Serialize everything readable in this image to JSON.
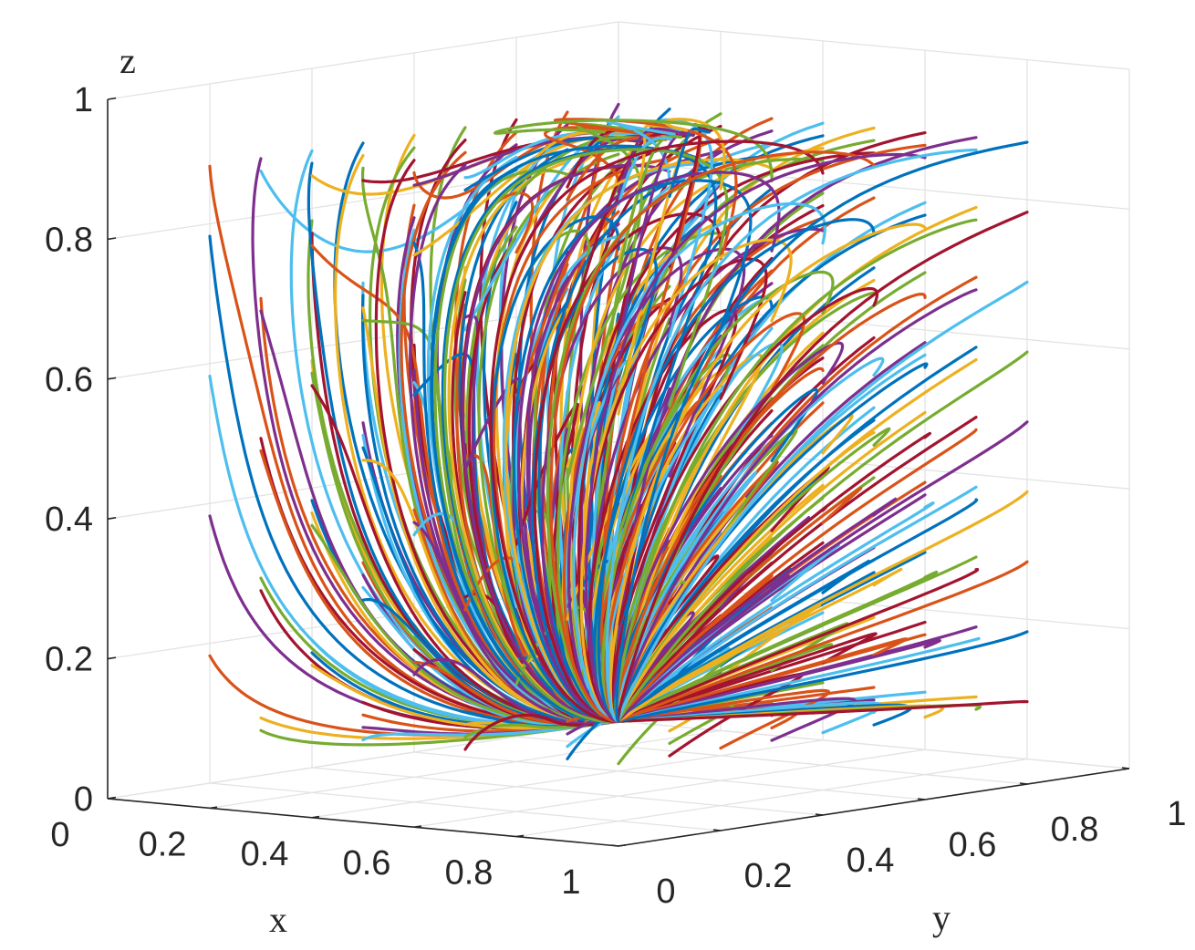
{
  "chart_data": {
    "type": "line",
    "subtype": "3d-phase-trajectories",
    "title": "",
    "xlabel": "x",
    "ylabel": "y",
    "zlabel": "z",
    "xlim": [
      0,
      1
    ],
    "ylim": [
      0,
      1
    ],
    "zlim": [
      0,
      1
    ],
    "grid": true,
    "box": true,
    "x_ticks": [
      "0",
      "0.2",
      "0.4",
      "0.6",
      "0.8",
      "1"
    ],
    "y_ticks": [
      "0",
      "0.2",
      "0.4",
      "0.6",
      "0.8",
      "1"
    ],
    "z_ticks": [
      "0",
      "0.2",
      "0.4",
      "0.6",
      "0.8",
      "1"
    ],
    "converges_to": {
      "x": 0,
      "y": 1,
      "z": 0
    },
    "line_colors": [
      "#0072BD",
      "#D95319",
      "#EDB120",
      "#7E2F8E",
      "#77AC30",
      "#4DBEEE",
      "#A2142F"
    ],
    "initial_conditions": {
      "x": [
        0.1,
        0.2,
        0.3,
        0.4,
        0.5,
        0.6,
        0.7,
        0.8,
        0.9
      ],
      "y": [
        0.1,
        0.2,
        0.3,
        0.4,
        0.5,
        0.6,
        0.7,
        0.8,
        0.9
      ],
      "z": [
        0.1,
        0.2,
        0.3,
        0.4,
        0.5,
        0.6,
        0.7,
        0.8,
        0.9
      ]
    }
  }
}
